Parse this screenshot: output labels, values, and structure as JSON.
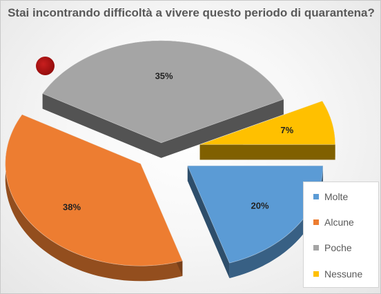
{
  "chart_data": {
    "type": "pie",
    "title": "Stai incontrando difficoltà a vivere questo periodo di quarantena?",
    "categories": [
      "Molte",
      "Alcune",
      "Poche",
      "Nessune"
    ],
    "values": [
      20,
      38,
      35,
      7
    ],
    "value_labels": [
      "20%",
      "38%",
      "35%",
      "7%"
    ],
    "colors": [
      "#5b9bd5",
      "#ed7d31",
      "#a5a5a5",
      "#ffc000"
    ],
    "exploded": true,
    "three_d": true,
    "legend_position": "bottom-right"
  }
}
